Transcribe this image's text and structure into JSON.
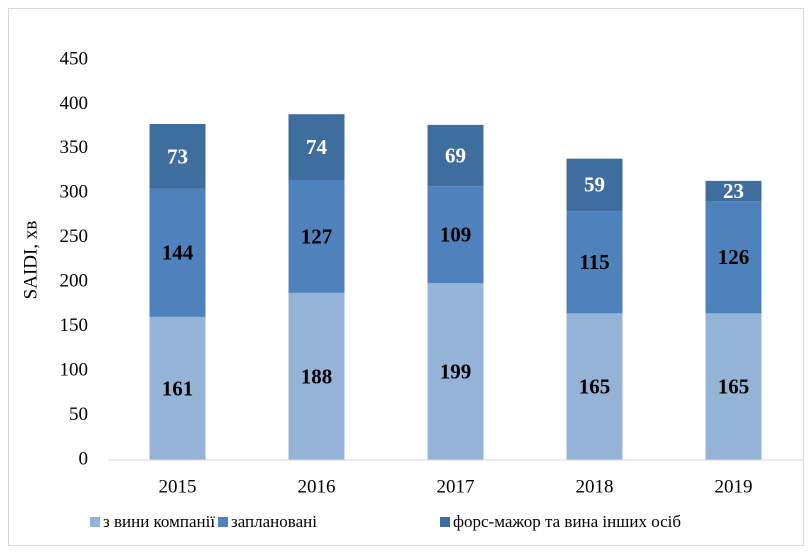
{
  "chart_data": {
    "type": "stacked_bar",
    "y_label": "SAIDI, хв",
    "categories": [
      "2015",
      "2016",
      "2017",
      "2018",
      "2019"
    ],
    "series": [
      {
        "name": "з вини компанії",
        "color": "#95b3d7",
        "values": [
          161,
          188,
          199,
          165,
          165
        ]
      },
      {
        "name": "заплановані",
        "color": "#4f81bd",
        "values": [
          144,
          127,
          109,
          115,
          126
        ]
      },
      {
        "name": "форс-мажор та вина інших осіб",
        "color": "#3f6d9e",
        "values": [
          73,
          74,
          69,
          59,
          23
        ]
      }
    ],
    "ylim": [
      0,
      450
    ],
    "yticks": [
      0,
      50,
      100,
      150,
      200,
      250,
      300,
      350,
      400,
      450
    ],
    "grid": false,
    "legend": "bottom"
  }
}
